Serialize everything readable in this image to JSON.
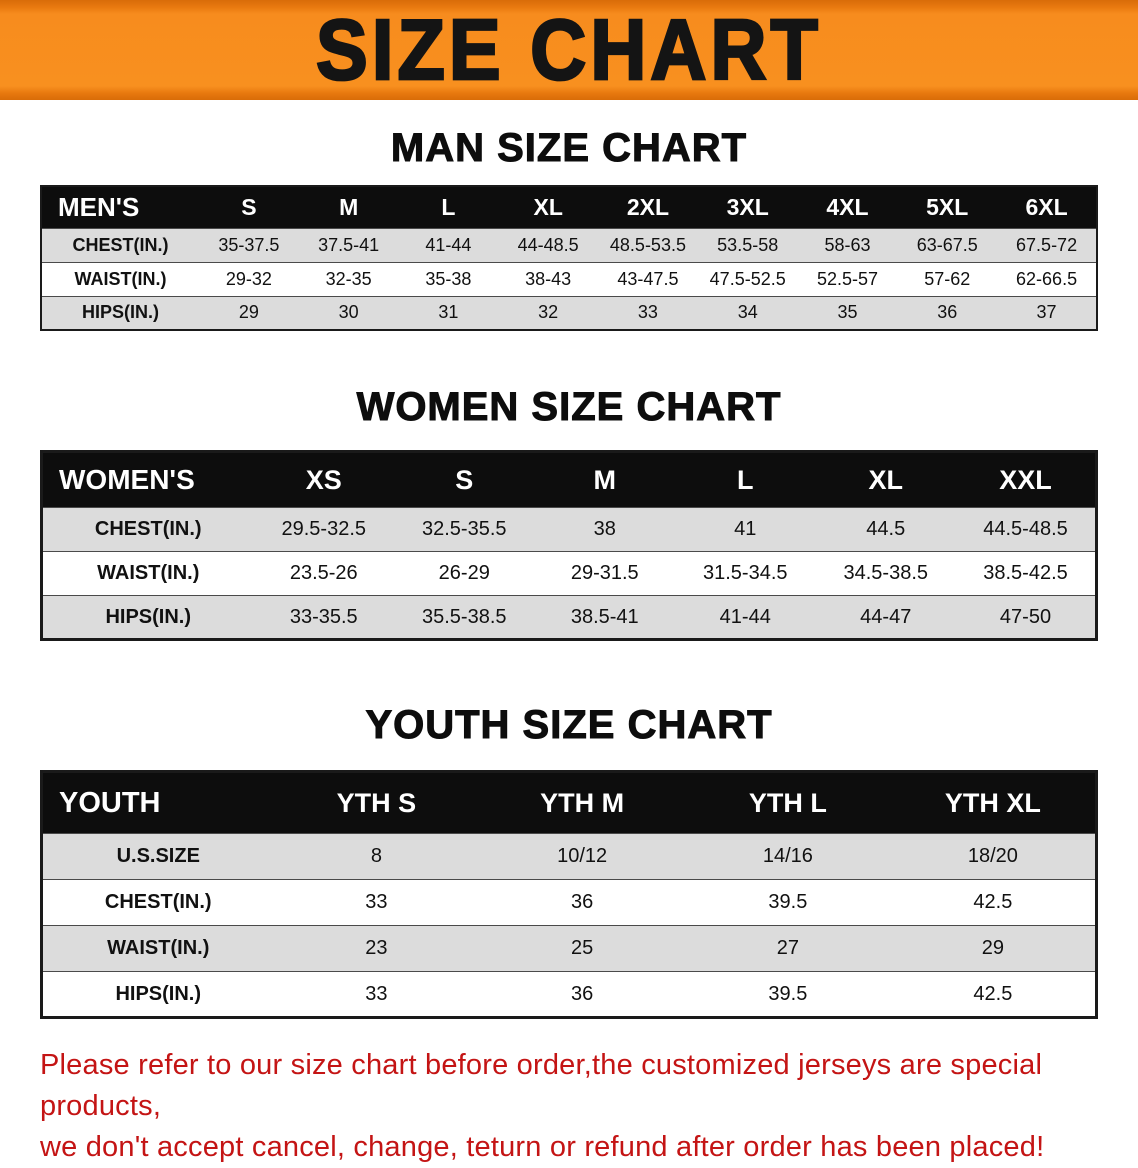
{
  "banner": {
    "title": "SIZE CHART",
    "bg_color": "#f78c1e",
    "fg_color": "#141414"
  },
  "sections": [
    {
      "heading": "MAN SIZE CHART",
      "corner_label": "MEN'S",
      "columns": [
        "S",
        "M",
        "L",
        "XL",
        "2XL",
        "3XL",
        "4XL",
        "5XL",
        "6XL"
      ],
      "rows": [
        {
          "label": "CHEST(IN.)",
          "values": [
            "35-37.5",
            "37.5-41",
            "41-44",
            "44-48.5",
            "48.5-53.5",
            "53.5-58",
            "58-63",
            "63-67.5",
            "67.5-72"
          ]
        },
        {
          "label": "WAIST(IN.)",
          "values": [
            "29-32",
            "32-35",
            "35-38",
            "38-43",
            "43-47.5",
            "47.5-52.5",
            "52.5-57",
            "57-62",
            "62-66.5"
          ]
        },
        {
          "label": "HIPS(IN.)",
          "values": [
            "29",
            "30",
            "31",
            "32",
            "33",
            "34",
            "35",
            "36",
            "37"
          ]
        }
      ]
    },
    {
      "heading": "WOMEN SIZE CHART",
      "corner_label": "WOMEN'S",
      "columns": [
        "XS",
        "S",
        "M",
        "L",
        "XL",
        "XXL"
      ],
      "rows": [
        {
          "label": "CHEST(IN.)",
          "values": [
            "29.5-32.5",
            "32.5-35.5",
            "38",
            "41",
            "44.5",
            "44.5-48.5"
          ]
        },
        {
          "label": "WAIST(IN.)",
          "values": [
            "23.5-26",
            "26-29",
            "29-31.5",
            "31.5-34.5",
            "34.5-38.5",
            "38.5-42.5"
          ]
        },
        {
          "label": "HIPS(IN.)",
          "values": [
            "33-35.5",
            "35.5-38.5",
            "38.5-41",
            "41-44",
            "44-47",
            "47-50"
          ]
        }
      ]
    },
    {
      "heading": "YOUTH SIZE CHART",
      "corner_label": "YOUTH",
      "columns": [
        "YTH S",
        "YTH M",
        "YTH L",
        "YTH XL"
      ],
      "rows": [
        {
          "label": "U.S.SIZE",
          "values": [
            "8",
            "10/12",
            "14/16",
            "18/20"
          ]
        },
        {
          "label": "CHEST(IN.)",
          "values": [
            "33",
            "36",
            "39.5",
            "42.5"
          ]
        },
        {
          "label": "WAIST(IN.)",
          "values": [
            "23",
            "25",
            "27",
            "29"
          ]
        },
        {
          "label": "HIPS(IN.)",
          "values": [
            "33",
            "36",
            "39.5",
            "42.5"
          ]
        }
      ]
    }
  ],
  "disclaimer": {
    "line1": "Please refer to our size chart before order,the customized jerseys are special products,",
    "line2": "we don't accept cancel, change, teturn or refund after order has been placed!",
    "color": "#c41414"
  }
}
